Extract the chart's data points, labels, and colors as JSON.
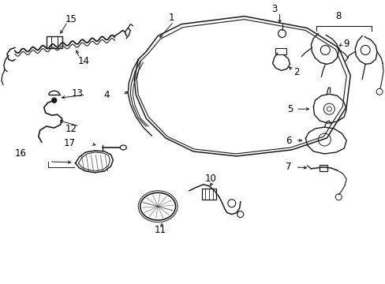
{
  "bg_color": "#ffffff",
  "line_color": "#1a1a1a",
  "text_color": "#000000",
  "fig_width": 4.89,
  "fig_height": 3.6,
  "dpi": 100,
  "font_size": 8.5
}
